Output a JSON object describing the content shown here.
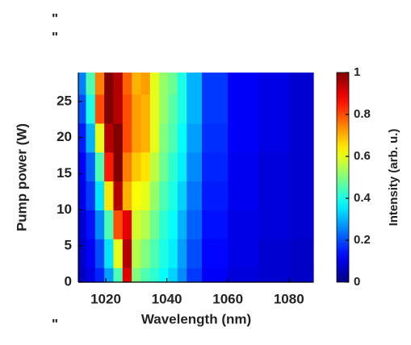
{
  "chart_data": {
    "type": "heatmap",
    "xlabel": "Wavelength (nm)",
    "ylabel": "Pump power (W)",
    "colorbar_label": "Intensity (arb. u.)",
    "annotations": [
      "\"",
      "\"",
      "\""
    ],
    "colormap": "jet",
    "x": [
      1012,
      1015,
      1018,
      1021,
      1024,
      1027,
      1030,
      1033,
      1036,
      1039,
      1042,
      1045,
      1048,
      1055,
      1065,
      1075,
      1085
    ],
    "y": [
      0,
      4,
      8,
      12,
      16,
      20,
      24,
      28
    ],
    "z": [
      [
        0.06,
        0.1,
        0.16,
        0.28,
        0.45,
        0.9,
        0.5,
        0.45,
        0.42,
        0.38,
        0.33,
        0.26,
        0.18,
        0.12,
        0.09,
        0.08,
        0.07
      ],
      [
        0.07,
        0.12,
        0.2,
        0.35,
        0.6,
        0.95,
        0.55,
        0.5,
        0.45,
        0.4,
        0.36,
        0.28,
        0.2,
        0.13,
        0.1,
        0.08,
        0.07
      ],
      [
        0.08,
        0.14,
        0.26,
        0.45,
        0.8,
        0.9,
        0.58,
        0.55,
        0.48,
        0.42,
        0.38,
        0.3,
        0.22,
        0.14,
        0.1,
        0.09,
        0.08
      ],
      [
        0.1,
        0.18,
        0.35,
        0.65,
        0.95,
        0.7,
        0.62,
        0.6,
        0.52,
        0.45,
        0.4,
        0.33,
        0.24,
        0.15,
        0.11,
        0.09,
        0.08
      ],
      [
        0.12,
        0.22,
        0.45,
        0.85,
        1,
        0.75,
        0.68,
        0.65,
        0.56,
        0.48,
        0.42,
        0.36,
        0.26,
        0.16,
        0.11,
        0.09,
        0.08
      ],
      [
        0.15,
        0.3,
        0.6,
        0.95,
        1,
        0.8,
        0.72,
        0.7,
        0.6,
        0.5,
        0.45,
        0.38,
        0.28,
        0.17,
        0.12,
        0.1,
        0.08
      ],
      [
        0.2,
        0.4,
        0.8,
        1,
        0.95,
        0.8,
        0.72,
        0.7,
        0.6,
        0.52,
        0.46,
        0.4,
        0.3,
        0.18,
        0.12,
        0.1,
        0.08
      ],
      [
        0.25,
        0.45,
        0.75,
        1,
        0.95,
        0.78,
        0.7,
        0.72,
        0.6,
        0.52,
        0.48,
        0.4,
        0.3,
        0.18,
        0.12,
        0.1,
        0.08
      ]
    ],
    "xlim": [
      1011,
      1088
    ],
    "xticks": [
      1020,
      1040,
      1060,
      1080
    ],
    "ylim": [
      0,
      29
    ],
    "yticks": [
      0,
      5,
      10,
      15,
      20,
      25
    ],
    "clim": [
      0,
      1
    ],
    "cticks": [
      0,
      0.2,
      0.4,
      0.6,
      0.8,
      1
    ]
  }
}
